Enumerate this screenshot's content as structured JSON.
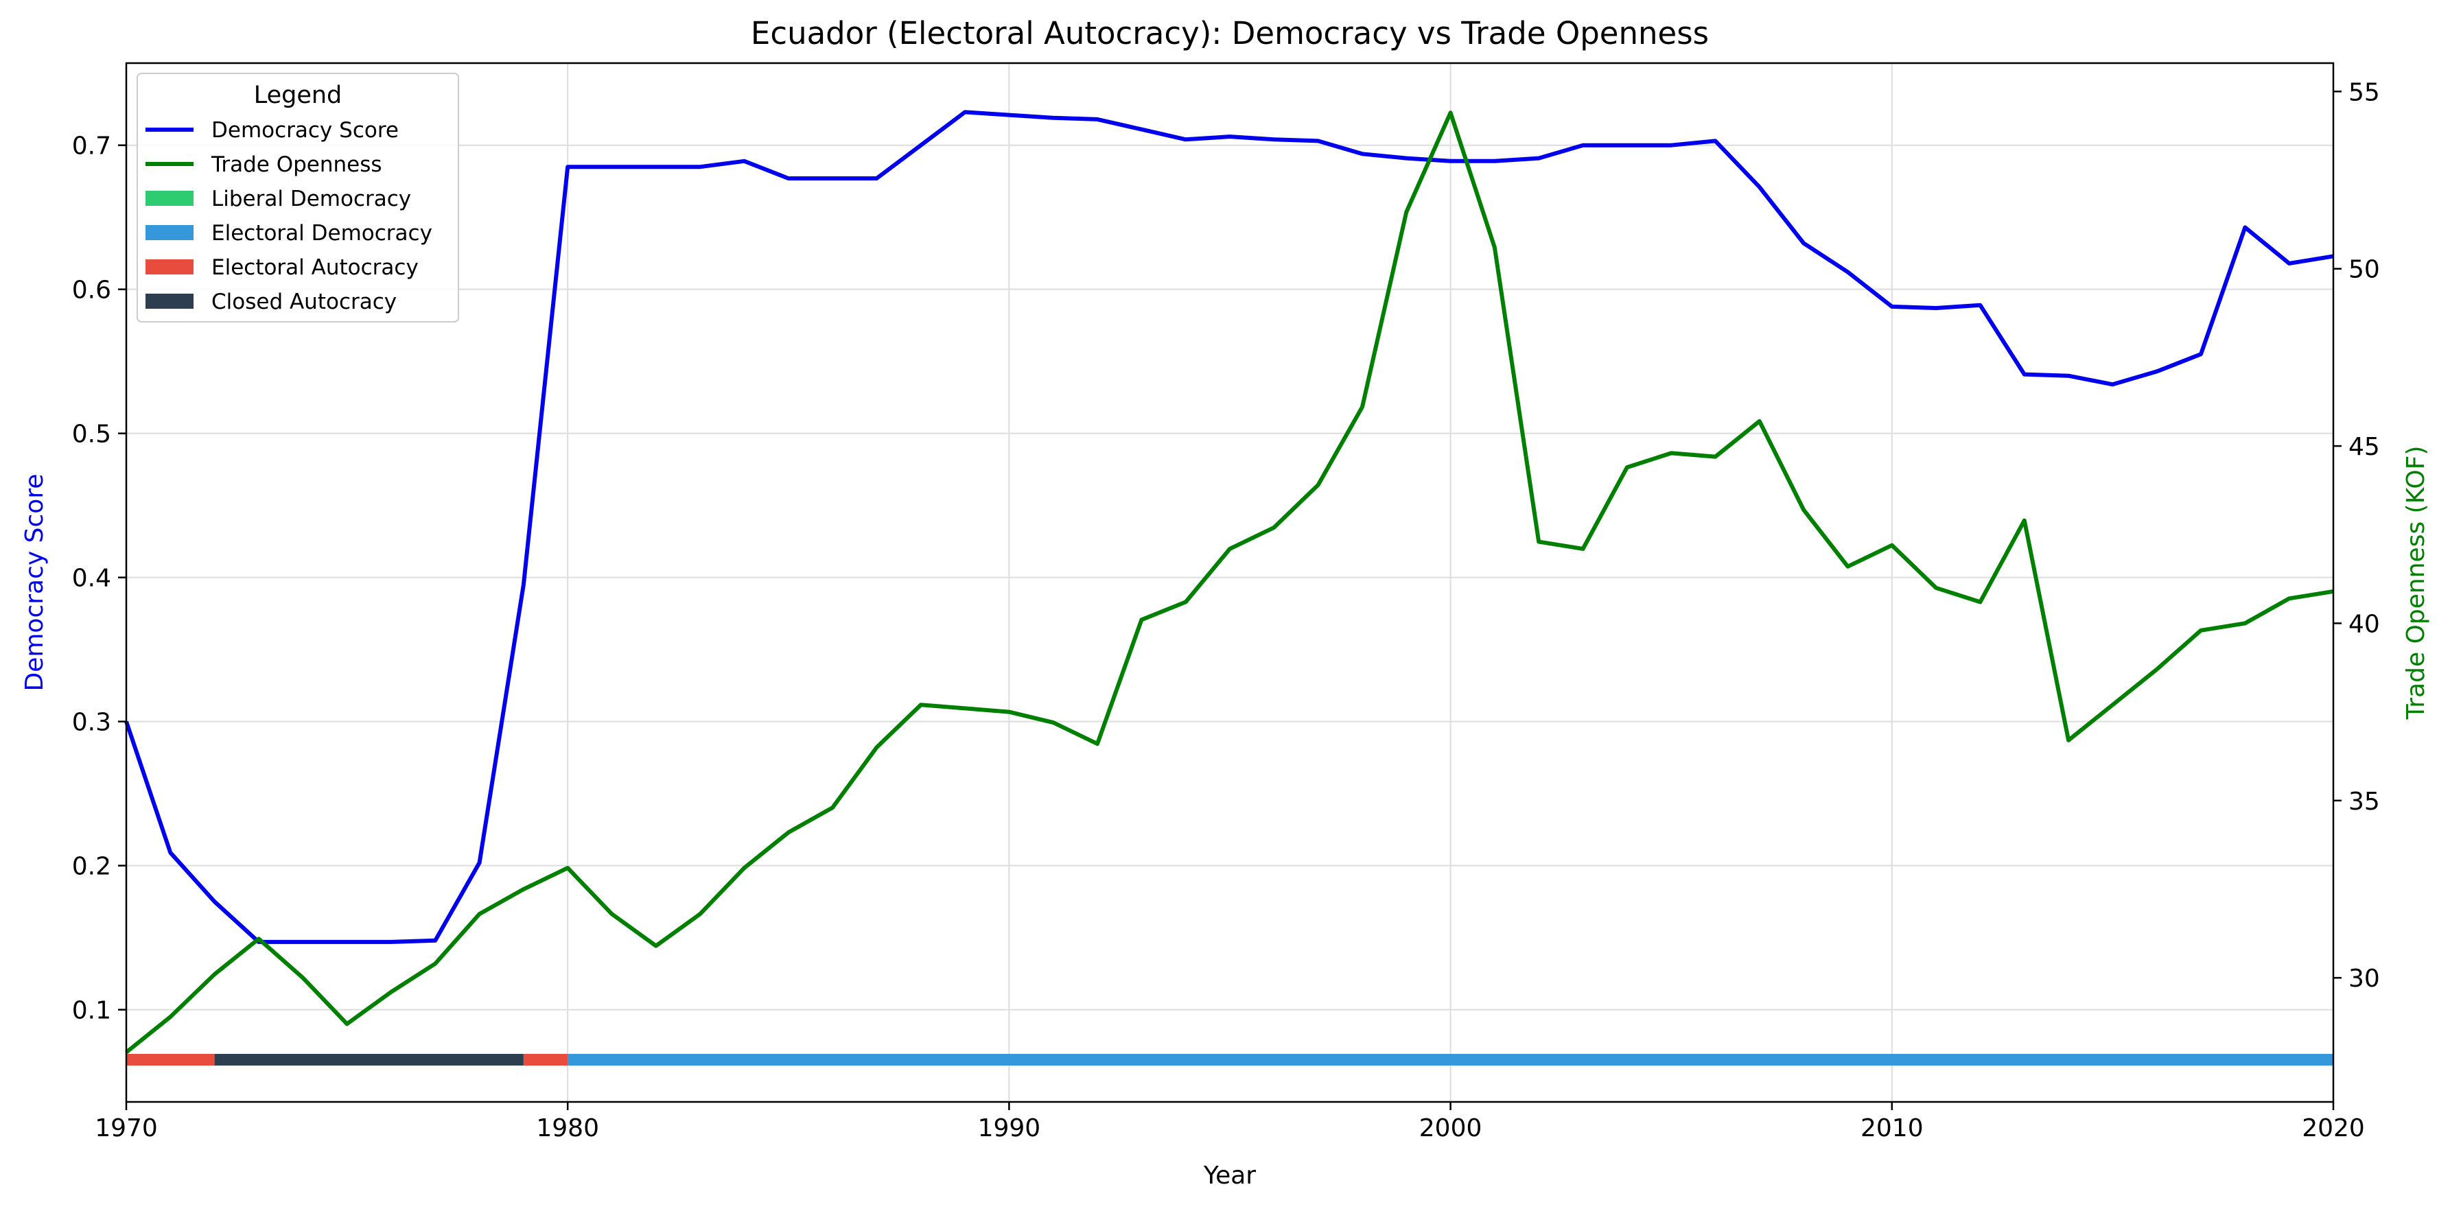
{
  "chart_data": {
    "type": "line",
    "title": "Ecuador (Electoral Autocracy): Democracy vs Trade Openness",
    "xlabel": "Year",
    "ylabel": "Democracy Score",
    "y2label": "Trade Openness (KOF)",
    "xlim": [
      1970,
      2020
    ],
    "ylim": [
      0.036,
      0.757
    ],
    "y2lim": [
      26.5,
      55.8
    ],
    "x_ticks": [
      1970,
      1980,
      1990,
      2000,
      2010,
      2020
    ],
    "y_ticks": [
      0.1,
      0.2,
      0.3,
      0.4,
      0.5,
      0.6,
      0.7
    ],
    "y_tick_labels": [
      "0.1",
      "0.2",
      "0.3",
      "0.4",
      "0.5",
      "0.6",
      "0.7"
    ],
    "y2_ticks": [
      30,
      35,
      40,
      45,
      50,
      55
    ],
    "grid": true,
    "legend_title": "Legend",
    "legend_position": "top-left",
    "x": [
      1970,
      1971,
      1972,
      1973,
      1974,
      1975,
      1976,
      1977,
      1978,
      1979,
      1980,
      1981,
      1982,
      1983,
      1984,
      1985,
      1986,
      1987,
      1988,
      1989,
      1990,
      1991,
      1992,
      1993,
      1994,
      1995,
      1996,
      1997,
      1998,
      1999,
      2000,
      2001,
      2002,
      2003,
      2004,
      2005,
      2006,
      2007,
      2008,
      2009,
      2010,
      2011,
      2012,
      2013,
      2014,
      2015,
      2016,
      2017,
      2018,
      2019,
      2020
    ],
    "series": [
      {
        "name": "Democracy Score",
        "axis": "left",
        "color": "#0000ee",
        "values": [
          0.3,
          0.209,
          0.175,
          0.147,
          0.147,
          0.147,
          0.147,
          0.148,
          0.202,
          0.395,
          0.685,
          0.685,
          0.685,
          0.685,
          0.689,
          0.677,
          0.677,
          0.677,
          0.7,
          0.723,
          0.721,
          0.719,
          0.718,
          0.711,
          0.704,
          0.706,
          0.704,
          0.703,
          0.694,
          0.691,
          0.689,
          0.689,
          0.691,
          0.7,
          0.7,
          0.7,
          0.703,
          0.671,
          0.632,
          0.612,
          0.588,
          0.587,
          0.589,
          0.541,
          0.54,
          0.534,
          0.543,
          0.555,
          0.643,
          0.618,
          0.623
        ]
      },
      {
        "name": "Trade Openness",
        "axis": "right",
        "color": "#008000",
        "values": [
          27.9,
          28.9,
          30.1,
          31.1,
          30.0,
          28.7,
          29.6,
          30.4,
          31.8,
          32.5,
          33.1,
          31.8,
          30.9,
          31.8,
          33.1,
          34.1,
          34.8,
          36.5,
          37.7,
          37.6,
          37.5,
          37.2,
          36.6,
          40.1,
          40.6,
          42.1,
          42.7,
          43.9,
          46.1,
          51.6,
          54.4,
          50.6,
          42.3,
          42.1,
          44.4,
          44.8,
          44.7,
          45.7,
          43.2,
          41.6,
          42.2,
          41.0,
          40.6,
          42.9,
          36.7,
          37.7,
          38.7,
          39.8,
          40.0,
          40.7,
          40.9
        ]
      }
    ],
    "regime_bands": [
      {
        "start": 1970,
        "end": 1972,
        "regime": "Electoral Autocracy"
      },
      {
        "start": 1972,
        "end": 1979,
        "regime": "Closed Autocracy"
      },
      {
        "start": 1979,
        "end": 1980,
        "regime": "Electoral Autocracy"
      },
      {
        "start": 1980,
        "end": 2020,
        "regime": "Electoral Democracy"
      }
    ],
    "regime_colors": {
      "Liberal Democracy": "#2ecc71",
      "Electoral Democracy": "#3498db",
      "Electoral Autocracy": "#e74c3c",
      "Closed Autocracy": "#2c3e50"
    },
    "legend": [
      {
        "label": "Democracy Score",
        "kind": "line",
        "color": "#0000ee"
      },
      {
        "label": "Trade Openness",
        "kind": "line",
        "color": "#008000"
      },
      {
        "label": "Liberal Democracy",
        "kind": "patch",
        "color": "#2ecc71"
      },
      {
        "label": "Electoral Democracy",
        "kind": "patch",
        "color": "#3498db"
      },
      {
        "label": "Electoral Autocracy",
        "kind": "patch",
        "color": "#e74c3c"
      },
      {
        "label": "Closed Autocracy",
        "kind": "patch",
        "color": "#2c3e50"
      }
    ]
  }
}
